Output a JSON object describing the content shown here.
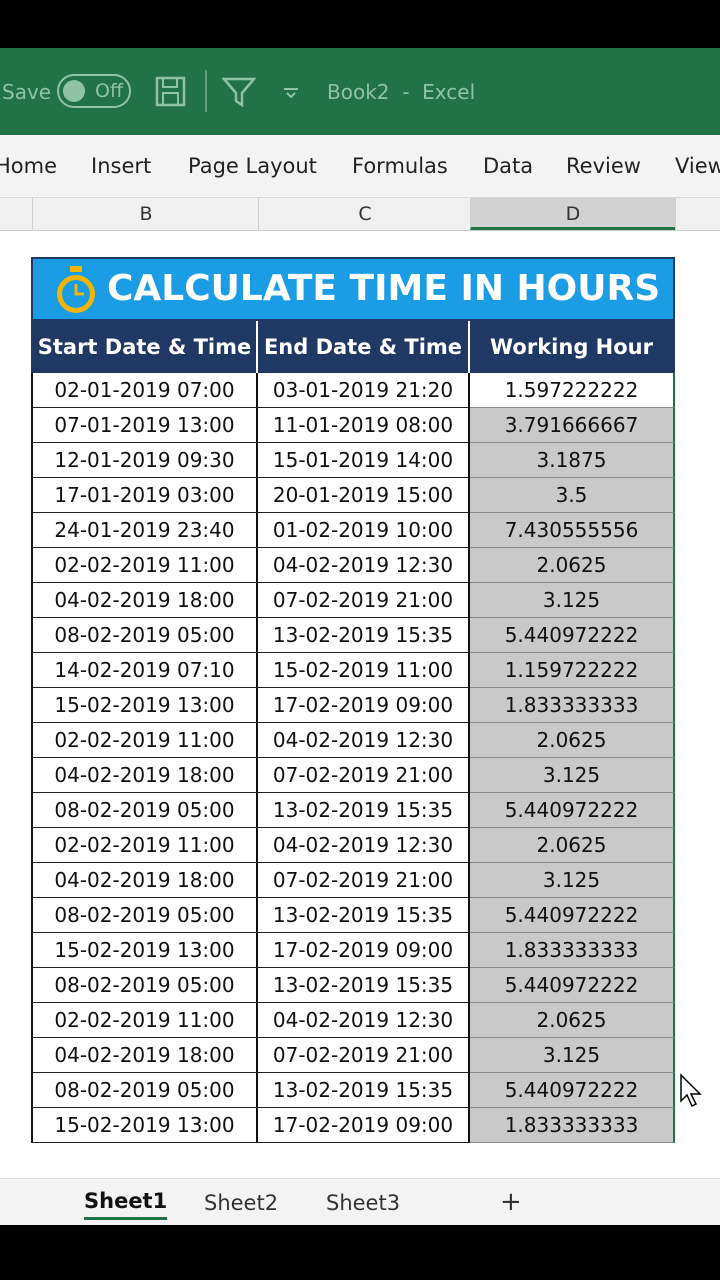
{
  "titlebar": {
    "save": "Save",
    "toggle": "Off",
    "doc_title": "Book2  -  Excel"
  },
  "ribbon_tabs": [
    "Home",
    "Insert",
    "Page Layout",
    "Formulas",
    "Data",
    "Review",
    "View"
  ],
  "column_headers": [
    "B",
    "C",
    "D"
  ],
  "table": {
    "title": "CALCULATE TIME IN HOURS",
    "headers": [
      "Start Date & Time",
      "End Date & Time",
      "Working Hour"
    ],
    "rows": [
      [
        "02-01-2019 07:00",
        "03-01-2019 21:20",
        "1.597222222"
      ],
      [
        "07-01-2019 13:00",
        "11-01-2019 08:00",
        "3.791666667"
      ],
      [
        "12-01-2019 09:30",
        "15-01-2019 14:00",
        "3.1875"
      ],
      [
        "17-01-2019 03:00",
        "20-01-2019 15:00",
        "3.5"
      ],
      [
        "24-01-2019 23:40",
        "01-02-2019 10:00",
        "7.430555556"
      ],
      [
        "02-02-2019 11:00",
        "04-02-2019 12:30",
        "2.0625"
      ],
      [
        "04-02-2019 18:00",
        "07-02-2019 21:00",
        "3.125"
      ],
      [
        "08-02-2019 05:00",
        "13-02-2019 15:35",
        "5.440972222"
      ],
      [
        "14-02-2019 07:10",
        "15-02-2019 11:00",
        "1.159722222"
      ],
      [
        "15-02-2019 13:00",
        "17-02-2019 09:00",
        "1.833333333"
      ],
      [
        "02-02-2019 11:00",
        "04-02-2019 12:30",
        "2.0625"
      ],
      [
        "04-02-2019 18:00",
        "07-02-2019 21:00",
        "3.125"
      ],
      [
        "08-02-2019 05:00",
        "13-02-2019 15:35",
        "5.440972222"
      ],
      [
        "02-02-2019 11:00",
        "04-02-2019 12:30",
        "2.0625"
      ],
      [
        "04-02-2019 18:00",
        "07-02-2019 21:00",
        "3.125"
      ],
      [
        "08-02-2019 05:00",
        "13-02-2019 15:35",
        "5.440972222"
      ],
      [
        "15-02-2019 13:00",
        "17-02-2019 09:00",
        "1.833333333"
      ],
      [
        "08-02-2019 05:00",
        "13-02-2019 15:35",
        "5.440972222"
      ],
      [
        "02-02-2019 11:00",
        "04-02-2019 12:30",
        "2.0625"
      ],
      [
        "04-02-2019 18:00",
        "07-02-2019 21:00",
        "3.125"
      ],
      [
        "08-02-2019 05:00",
        "13-02-2019 15:35",
        "5.440972222"
      ],
      [
        "15-02-2019 13:00",
        "17-02-2019 09:00",
        "1.833333333"
      ]
    ]
  },
  "sheet_tabs": [
    "Sheet1",
    "Sheet2",
    "Sheet3",
    "+"
  ]
}
